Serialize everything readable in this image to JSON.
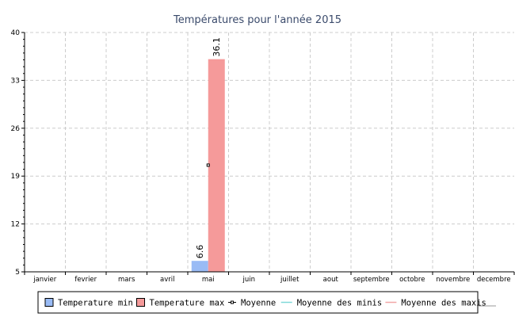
{
  "chart_data": {
    "type": "bar",
    "title": "Températures pour l'année 2015",
    "categories": [
      "janvier",
      "fevrier",
      "mars",
      "avril",
      "mai",
      "juin",
      "juillet",
      "aout",
      "septembre",
      "octobre",
      "novembre",
      "decembre"
    ],
    "series": [
      {
        "name": "Temperature min",
        "kind": "bar",
        "color": "#99bbf5",
        "values": [
          null,
          null,
          null,
          null,
          6.6,
          null,
          null,
          null,
          null,
          null,
          null,
          null
        ],
        "data_labels": [
          null,
          null,
          null,
          null,
          "6.6",
          null,
          null,
          null,
          null,
          null,
          null,
          null
        ]
      },
      {
        "name": "Temperature max",
        "kind": "bar",
        "color": "#f59a9a",
        "values": [
          null,
          null,
          null,
          null,
          36.1,
          null,
          null,
          null,
          null,
          null,
          null,
          null
        ],
        "data_labels": [
          null,
          null,
          null,
          null,
          "36.1",
          null,
          null,
          null,
          null,
          null,
          null,
          null
        ]
      },
      {
        "name": "Moyenne",
        "kind": "point",
        "color": "#000000",
        "values": [
          null,
          null,
          null,
          null,
          20.6,
          null,
          null,
          null,
          null,
          null,
          null,
          null
        ]
      },
      {
        "name": "Moyenne des minis",
        "kind": "line",
        "color": "#7fd8d8",
        "values": [
          null,
          null,
          null,
          null,
          null,
          null,
          null,
          null,
          null,
          null,
          null,
          null
        ]
      },
      {
        "name": "Moyenne des maxis",
        "kind": "line",
        "color": "#f2a6a6",
        "values": [
          null,
          null,
          null,
          null,
          null,
          null,
          null,
          null,
          null,
          null,
          null,
          null
        ]
      }
    ],
    "ylim": [
      5,
      40
    ],
    "yticks": [
      5,
      12,
      19,
      26,
      33,
      40
    ],
    "ytick_labels": [
      "5",
      "12",
      "19",
      "26",
      "33",
      "40"
    ],
    "grid": true,
    "legend_position": "bottom",
    "colors": {
      "axis": "#000000",
      "grid": "#cccccc",
      "title": "#3a4a6b"
    }
  }
}
